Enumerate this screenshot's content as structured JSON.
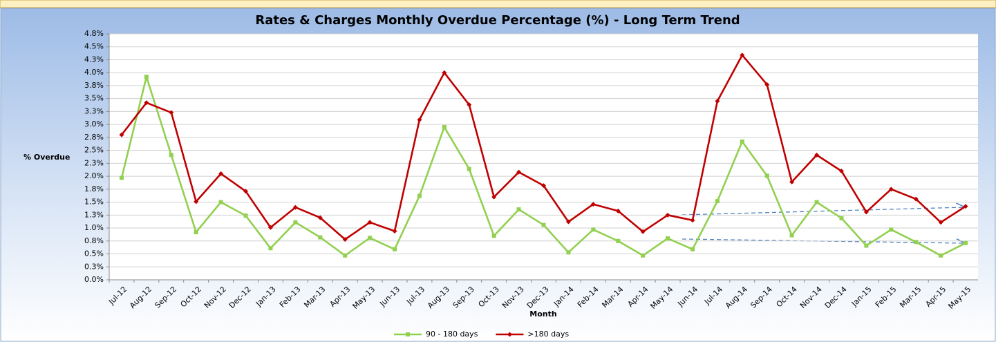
{
  "chart_data": {
    "type": "line",
    "title": "Rates & Charges Monthly Overdue Percentage (%) - Long Term Trend",
    "x_label": "Month",
    "y_label": "% Overdue",
    "categories": [
      "Jul-12",
      "Aug-12",
      "Sep-12",
      "Oct-12",
      "Nov-12",
      "Dec-12",
      "Jan-13",
      "Feb-13",
      "Mar-13",
      "Apr-13",
      "May-13",
      "Jun-13",
      "Jul-13",
      "Aug-13",
      "Sep-13",
      "Oct-13",
      "Nov-13",
      "Dec-13",
      "Jan-14",
      "Feb-14",
      "Mar-14",
      "Apr-14",
      "May-14",
      "Jun-14",
      "Jul-14",
      "Aug-14",
      "Sep-14",
      "Oct-14",
      "Nov-14",
      "Dec-14",
      "Jan-15",
      "Feb-15",
      "Mar-15",
      "Apr-15",
      "May-15"
    ],
    "series": [
      {
        "name": "90 - 180 days",
        "color": "#92d050",
        "marker": "square",
        "values": [
          1.97,
          3.92,
          2.41,
          0.92,
          1.5,
          1.24,
          0.61,
          1.11,
          0.82,
          0.47,
          0.81,
          0.59,
          1.62,
          2.95,
          2.14,
          0.85,
          1.36,
          1.06,
          0.53,
          0.97,
          0.75,
          0.47,
          0.8,
          0.59,
          1.52,
          2.67,
          2.01,
          0.86,
          1.5,
          1.19,
          0.66,
          0.97,
          0.73,
          0.47,
          0.71
        ]
      },
      {
        "name": ">180 days",
        "color": "#c00000",
        "marker": "diamond",
        "values": [
          2.8,
          3.42,
          3.23,
          1.51,
          2.05,
          1.71,
          1.01,
          1.4,
          1.2,
          0.78,
          1.11,
          0.94,
          3.09,
          4.0,
          3.38,
          1.6,
          2.08,
          1.82,
          1.12,
          1.46,
          1.33,
          0.93,
          1.25,
          1.15,
          3.45,
          4.34,
          3.77,
          1.89,
          2.41,
          2.1,
          1.31,
          1.75,
          1.56,
          1.11,
          1.42
        ]
      }
    ],
    "ylim": [
      0,
      4.75
    ],
    "yticks": [
      {
        "value": 0,
        "label": "0.0%"
      },
      {
        "value": 0.25,
        "label": "0.3%"
      },
      {
        "value": 0.5,
        "label": "0.5%"
      },
      {
        "value": 0.75,
        "label": "0.8%"
      },
      {
        "value": 1,
        "label": "1.0%"
      },
      {
        "value": 1.25,
        "label": "1.3%"
      },
      {
        "value": 1.5,
        "label": "1.5%"
      },
      {
        "value": 1.75,
        "label": "1.8%"
      },
      {
        "value": 2,
        "label": "2.0%"
      },
      {
        "value": 2.25,
        "label": "2.3%"
      },
      {
        "value": 2.5,
        "label": "2.5%"
      },
      {
        "value": 2.75,
        "label": "2.8%"
      },
      {
        "value": 3,
        "label": "3.0%"
      },
      {
        "value": 3.25,
        "label": "3.3%"
      },
      {
        "value": 3.5,
        "label": "3.5%"
      },
      {
        "value": 3.75,
        "label": "3.8%"
      },
      {
        "value": 4,
        "label": "4.0%"
      },
      {
        "value": 4.25,
        "label": "4.3%"
      },
      {
        "value": 4.5,
        "label": "4.5%"
      },
      {
        "value": 4.75,
        "label": "4.8%"
      }
    ],
    "grid": true,
    "legend": "bottom"
  }
}
